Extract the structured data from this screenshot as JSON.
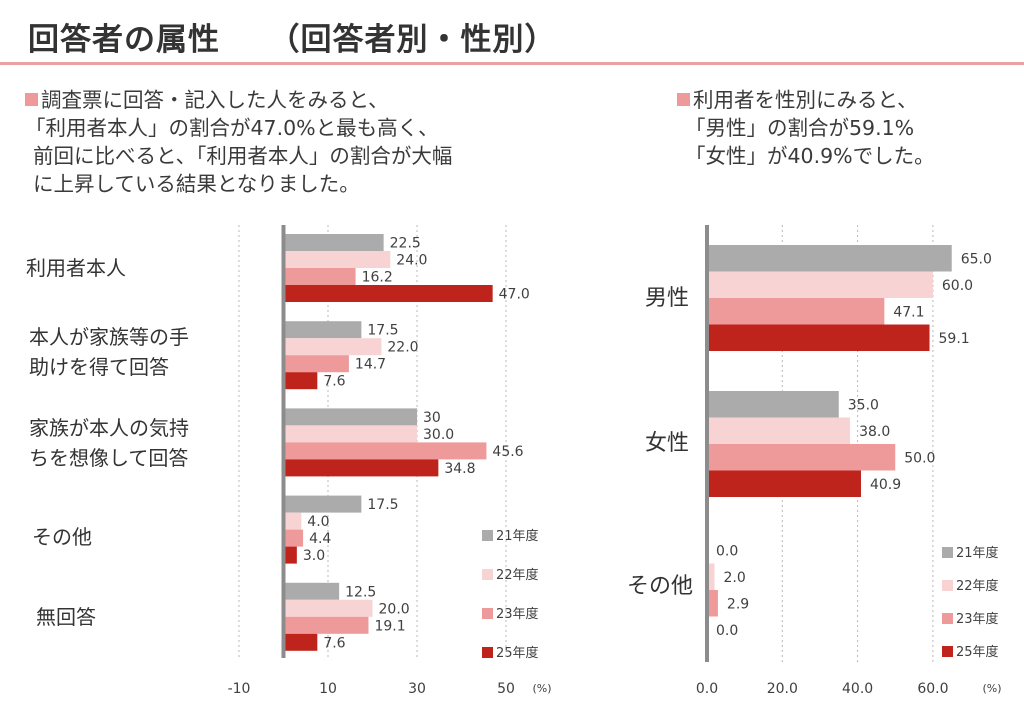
{
  "page": {
    "title": "回答者の属性　　（回答者別・性別）",
    "left_summary": {
      "bullet_icon": "square-bullet-icon",
      "lines": [
        "調査票に回答・記入した人をみると、",
        "「利用者本人」の割合が47.0%と最も高く、",
        "前回に比べると、「利用者本人」の割合が大幅",
        "に上昇している結果となりました。"
      ]
    },
    "right_summary": {
      "bullet_icon": "square-bullet-icon",
      "lines": [
        "利用者を性別にみると、",
        "「男性」の割合が59.1%",
        "「女性」が40.9%でした。"
      ]
    },
    "accent_color": "#e8a3a3"
  },
  "chart_data": [
    {
      "type": "bar",
      "orientation": "horizontal",
      "title": "回答者別",
      "categories": [
        "利用者本人",
        "本人が家族等の手\n助けを得て回答",
        "家族が本人の気持\nちを想像して回答",
        "その他",
        "無回答"
      ],
      "series": [
        {
          "name": "21年度",
          "color": "#ababab",
          "values": [
            22.5,
            17.5,
            30,
            17.5,
            12.5
          ],
          "labels": [
            "22.5",
            "17.5",
            "30",
            "17.5",
            "12.5"
          ]
        },
        {
          "name": "22年度",
          "color": "#f8d3d3",
          "values": [
            24.0,
            22.0,
            30.0,
            4.0,
            20.0
          ],
          "labels": [
            "24.0",
            "22.0",
            "30.0",
            "4.0",
            "20.0"
          ]
        },
        {
          "name": "23年度",
          "color": "#ee9a9a",
          "values": [
            16.2,
            14.7,
            45.6,
            4.4,
            19.1
          ],
          "labels": [
            "16.2",
            "14.7",
            "45.6",
            "4.4",
            "19.1"
          ]
        },
        {
          "name": "25年度",
          "color": "#bf241c",
          "values": [
            47.0,
            7.6,
            34.8,
            3.0,
            7.6
          ],
          "labels": [
            "47.0",
            "7.6",
            "34.8",
            "3.0",
            "7.6"
          ]
        }
      ],
      "xticks": [
        -10,
        10,
        30,
        50
      ],
      "xtick_labels": [
        "-10",
        "10",
        "30",
        "50"
      ],
      "xlim": [
        -10,
        50
      ],
      "unit_label": "(%)",
      "grid": true,
      "legend_position": "bottom-right"
    },
    {
      "type": "bar",
      "orientation": "horizontal",
      "title": "性別",
      "categories": [
        "男性",
        "女性",
        "その他"
      ],
      "series": [
        {
          "name": "21年度",
          "color": "#ababab",
          "values": [
            65.0,
            35.0,
            0.0
          ],
          "labels": [
            "65.0",
            "35.0",
            "0.0"
          ]
        },
        {
          "name": "22年度",
          "color": "#f8d3d3",
          "values": [
            60.0,
            38.0,
            2.0
          ],
          "labels": [
            "60.0",
            "38.0",
            "2.0"
          ]
        },
        {
          "name": "23年度",
          "color": "#ee9a9a",
          "values": [
            47.1,
            50.0,
            2.9
          ],
          "labels": [
            "47.1",
            "50.0",
            "2.9"
          ]
        },
        {
          "name": "25年度",
          "color": "#bf241c",
          "values": [
            59.1,
            40.9,
            0.0
          ],
          "labels": [
            "59.1",
            "40.9",
            "0.0"
          ]
        }
      ],
      "xticks": [
        0,
        20,
        40,
        60
      ],
      "xtick_labels": [
        "0.0",
        "20.0",
        "40.0",
        "60.0"
      ],
      "xlim": [
        0,
        65
      ],
      "unit_label": "(%)",
      "grid": true,
      "legend_position": "bottom-right"
    }
  ]
}
